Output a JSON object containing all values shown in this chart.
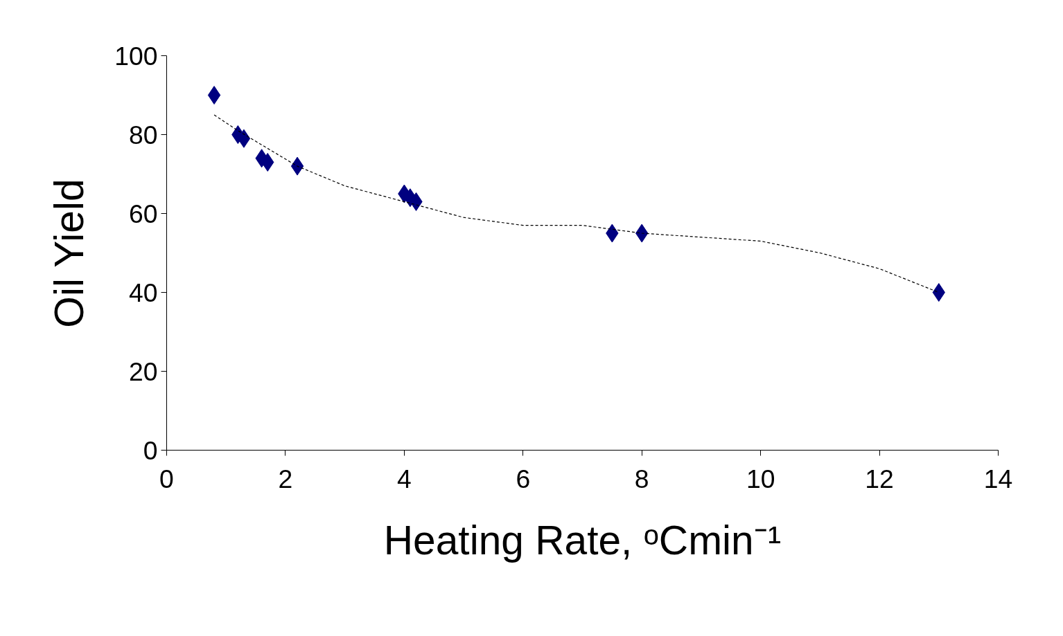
{
  "chart_data": {
    "type": "scatter",
    "xlabel": "Heating Rate, ᵒCmin⁻¹",
    "ylabel": "Oil Yield",
    "xlim": [
      0,
      14
    ],
    "xticks": [
      0,
      2,
      4,
      6,
      8,
      10,
      12,
      14
    ],
    "ylim": [
      0,
      100
    ],
    "yticks": [
      0,
      20,
      40,
      60,
      80,
      100
    ],
    "grid": false,
    "marker": "diamond",
    "series": [
      {
        "color": "#000080",
        "x": [
          0.8,
          1.2,
          1.3,
          1.6,
          1.7,
          2.2,
          4.0,
          4.1,
          4.2,
          7.5,
          8.0,
          13.0
        ],
        "values": [
          90,
          80,
          79,
          74,
          73,
          72,
          65,
          64,
          63,
          55,
          55,
          40
        ]
      },
      {
        "type": "line",
        "color": "#000000",
        "line_style": "dashed",
        "marker": "none",
        "x": [
          0.8,
          1.2,
          2.2,
          3,
          4,
          5,
          6,
          7,
          8,
          9,
          10,
          11,
          12,
          13
        ],
        "values": [
          85,
          81,
          72,
          67,
          63,
          59,
          57,
          57,
          55,
          54,
          53,
          50,
          46,
          40
        ]
      }
    ]
  }
}
